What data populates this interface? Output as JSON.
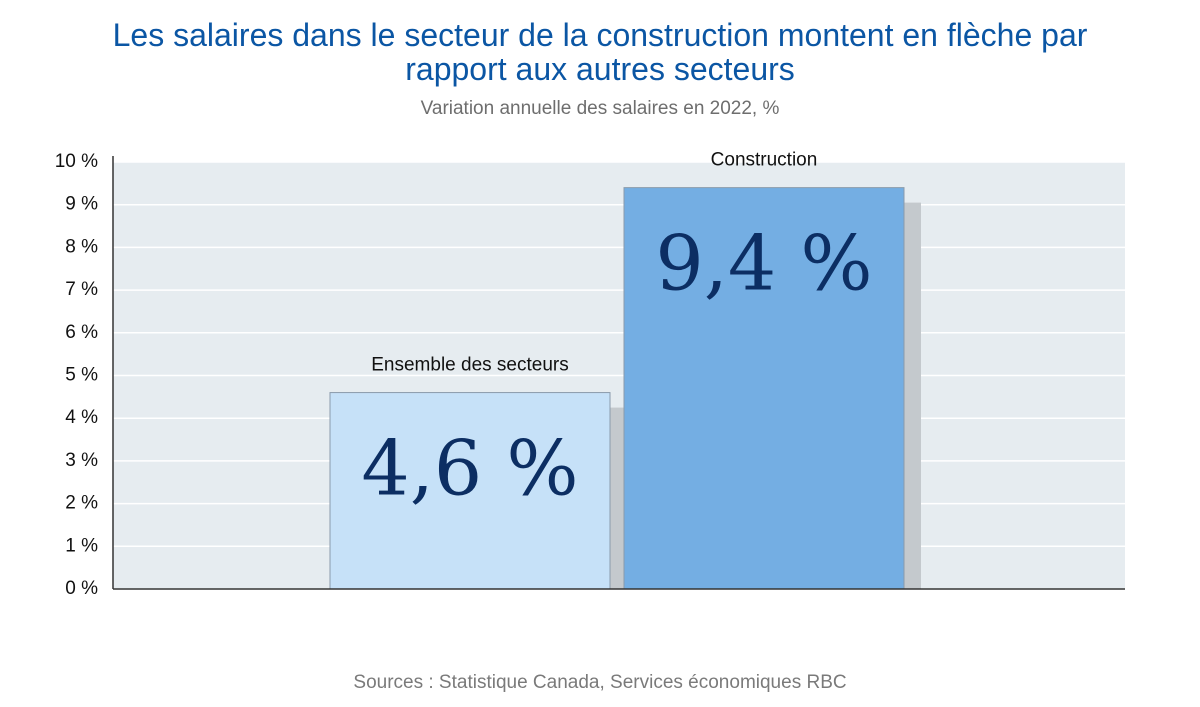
{
  "chart_data": {
    "type": "bar",
    "title": "Les salaires dans le secteur de la construction montent en flèche par rapport aux autres secteurs",
    "subtitle": "Variation annuelle des salaires en 2022, %",
    "categories": [
      "Ensemble des secteurs",
      "Construction"
    ],
    "values": [
      4.6,
      9.4
    ],
    "value_labels": [
      "4,6 %",
      "9,4 %"
    ],
    "colors": [
      "#c6e1f8",
      "#74aee3"
    ],
    "ylim": [
      0,
      10
    ],
    "yticks": [
      {
        "value": 0,
        "label": "0 %"
      },
      {
        "value": 1,
        "label": "1 %"
      },
      {
        "value": 2,
        "label": "2 %"
      },
      {
        "value": 3,
        "label": "3 %"
      },
      {
        "value": 4,
        "label": "4 %"
      },
      {
        "value": 5,
        "label": "5 %"
      },
      {
        "value": 6,
        "label": "6 %"
      },
      {
        "value": 7,
        "label": "7 %"
      },
      {
        "value": 8,
        "label": "8 %"
      },
      {
        "value": 9,
        "label": "9 %"
      },
      {
        "value": 10,
        "label": "10 %"
      }
    ],
    "grid": true,
    "source": "Sources : Statistique Canada, Services économiques RBC"
  }
}
